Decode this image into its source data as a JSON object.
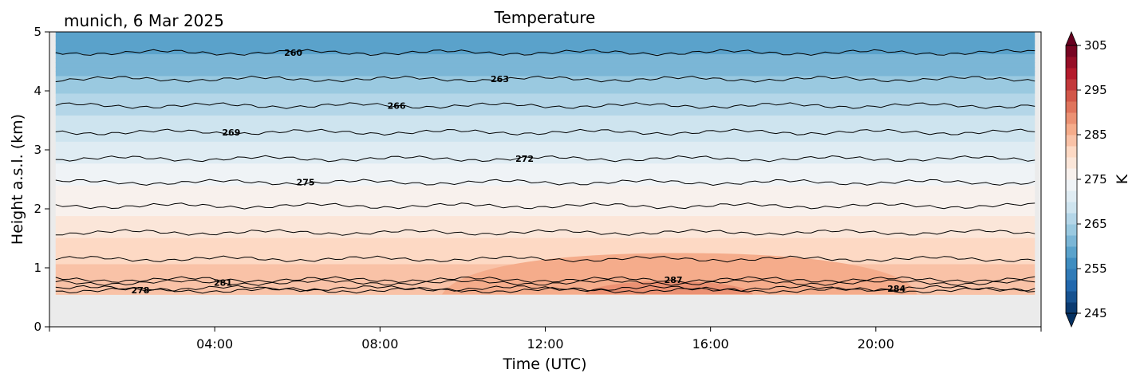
{
  "location_date": "munich, 6 Mar 2025",
  "chart_data": {
    "type": "heatmap",
    "title": "Temperature",
    "xlabel": "Time (UTC)",
    "ylabel": "Height a.s.l. (km)",
    "x_range_hours": [
      0,
      24
    ],
    "ylim": [
      0,
      5
    ],
    "x_ticks": [
      {
        "hour": 4,
        "label": "04:00"
      },
      {
        "hour": 8,
        "label": "08:00"
      },
      {
        "hour": 12,
        "label": "12:00"
      },
      {
        "hour": 16,
        "label": "16:00"
      },
      {
        "hour": 20,
        "label": "20:00"
      }
    ],
    "y_ticks": [
      {
        "value": 0,
        "label": "0"
      },
      {
        "value": 1,
        "label": "1"
      },
      {
        "value": 2,
        "label": "2"
      },
      {
        "value": 3,
        "label": "3"
      },
      {
        "value": 4,
        "label": "4"
      },
      {
        "value": 5,
        "label": "5"
      }
    ],
    "data_extent": {
      "x_hours": [
        0.15,
        23.85
      ],
      "height_km": [
        0.55,
        5.0
      ]
    },
    "no_data_color": "#ebebeb",
    "colorbar": {
      "label": "K",
      "range": [
        245,
        305
      ],
      "ticks": [
        {
          "value": 245,
          "label": "245"
        },
        {
          "value": 255,
          "label": "255"
        },
        {
          "value": 265,
          "label": "265"
        },
        {
          "value": 275,
          "label": "275"
        },
        {
          "value": 285,
          "label": "285"
        },
        {
          "value": 295,
          "label": "295"
        },
        {
          "value": 305,
          "label": "305"
        }
      ],
      "colormap": "RdBu_r",
      "extend": "both"
    },
    "temperature_profile": [
      {
        "height_km": 0.55,
        "K": 284.5
      },
      {
        "height_km": 1.0,
        "K": 283.0
      },
      {
        "height_km": 1.5,
        "K": 280.0
      },
      {
        "height_km": 2.0,
        "K": 277.0
      },
      {
        "height_km": 2.5,
        "K": 274.5
      },
      {
        "height_km": 3.0,
        "K": 271.0
      },
      {
        "height_km": 3.5,
        "K": 268.0
      },
      {
        "height_km": 4.0,
        "K": 264.5
      },
      {
        "height_km": 4.5,
        "K": 261.0
      },
      {
        "height_km": 5.0,
        "K": 257.5
      }
    ],
    "warm_region": {
      "peak_K": 288,
      "time_hours": [
        9.5,
        21.0
      ],
      "height_km": [
        0.55,
        1.25
      ]
    },
    "contours": [
      {
        "value": 260,
        "label": "260",
        "height_km": 4.65,
        "label_hour": 5.9
      },
      {
        "value": 263,
        "label": "263",
        "height_km": 4.2,
        "label_hour": 10.9
      },
      {
        "value": 266,
        "label": "266",
        "height_km": 3.75,
        "label_hour": 8.4
      },
      {
        "value": 269,
        "label": "269",
        "height_km": 3.3,
        "label_hour": 4.4
      },
      {
        "value": 272,
        "label": "272",
        "height_km": 2.85,
        "label_hour": 11.5
      },
      {
        "value": 275,
        "label": "275",
        "height_km": 2.45,
        "label_hour": 6.2
      },
      {
        "value": 278,
        "label": null,
        "height_km": 2.05,
        "label_hour": null
      },
      {
        "value": 281,
        "label": null,
        "height_km": 1.6,
        "label_hour": null
      },
      {
        "value": 284,
        "label": null,
        "height_km": 1.15,
        "label_hour": null
      },
      {
        "value": 281,
        "label": "281",
        "height_km": 0.75,
        "label_hour": 4.2
      },
      {
        "value": 278,
        "label": "278",
        "height_km": 0.62,
        "label_hour": 2.2
      },
      {
        "value": 284,
        "label": "284",
        "height_km": 0.65,
        "label_hour": 20.5
      },
      {
        "value": 287,
        "label": "287",
        "height_km": 0.8,
        "label_hour": 15.1
      }
    ]
  }
}
